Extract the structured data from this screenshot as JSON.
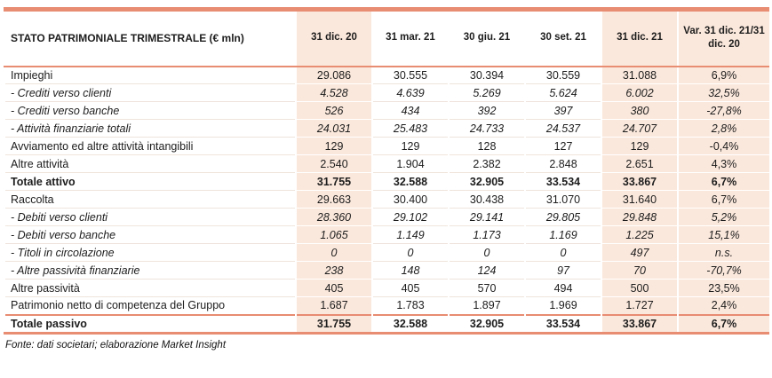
{
  "colors": {
    "accent": "#E88C72",
    "highlight": "#FBE8DC"
  },
  "table": {
    "title": "STATO PATRIMONIALE TRIMESTRALE (€ mln)",
    "columns": [
      "31 dic. 20",
      "31 mar. 21",
      "30 giu. 21",
      "30 set. 21",
      "31 dic. 21",
      "Var. 31 dic. 21/31 dic. 20"
    ],
    "rows": [
      {
        "label": "Impieghi",
        "em": false,
        "strong": false,
        "topline": false,
        "values": [
          "29.086",
          "30.555",
          "30.394",
          "30.559",
          "31.088",
          "6,9%"
        ]
      },
      {
        "label": "- Crediti verso clienti",
        "em": true,
        "strong": false,
        "topline": false,
        "values": [
          "4.528",
          "4.639",
          "5.269",
          "5.624",
          "6.002",
          "32,5%"
        ]
      },
      {
        "label": "- Crediti verso banche",
        "em": true,
        "strong": false,
        "topline": false,
        "values": [
          "526",
          "434",
          "392",
          "397",
          "380",
          "-27,8%"
        ]
      },
      {
        "label": "- Attività finanziarie totali",
        "em": true,
        "strong": false,
        "topline": false,
        "values": [
          "24.031",
          "25.483",
          "24.733",
          "24.537",
          "24.707",
          "2,8%"
        ]
      },
      {
        "label": "Avviamento ed altre attività intangibili",
        "em": false,
        "strong": false,
        "topline": false,
        "values": [
          "129",
          "129",
          "128",
          "127",
          "129",
          "-0,4%"
        ]
      },
      {
        "label": "Altre attività",
        "em": false,
        "strong": false,
        "topline": false,
        "values": [
          "2.540",
          "1.904",
          "2.382",
          "2.848",
          "2.651",
          "4,3%"
        ]
      },
      {
        "label": "Totale attivo",
        "em": false,
        "strong": true,
        "topline": false,
        "values": [
          "31.755",
          "32.588",
          "32.905",
          "33.534",
          "33.867",
          "6,7%"
        ]
      },
      {
        "label": "Raccolta",
        "em": false,
        "strong": false,
        "topline": false,
        "values": [
          "29.663",
          "30.400",
          "30.438",
          "31.070",
          "31.640",
          "6,7%"
        ]
      },
      {
        "label": "- Debiti verso clienti",
        "em": true,
        "strong": false,
        "topline": false,
        "values": [
          "28.360",
          "29.102",
          "29.141",
          "29.805",
          "29.848",
          "5,2%"
        ]
      },
      {
        "label": "- Debiti verso banche",
        "em": true,
        "strong": false,
        "topline": false,
        "values": [
          "1.065",
          "1.149",
          "1.173",
          "1.169",
          "1.225",
          "15,1%"
        ]
      },
      {
        "label": "- Titoli in circolazione",
        "em": true,
        "strong": false,
        "topline": false,
        "values": [
          "0",
          "0",
          "0",
          "0",
          "497",
          "n.s."
        ]
      },
      {
        "label": "- Altre passività finanziarie",
        "em": true,
        "strong": false,
        "topline": false,
        "values": [
          "238",
          "148",
          "124",
          "97",
          "70",
          "-70,7%"
        ]
      },
      {
        "label": "Altre passività",
        "em": false,
        "strong": false,
        "topline": false,
        "values": [
          "405",
          "405",
          "570",
          "494",
          "500",
          "23,5%"
        ]
      },
      {
        "label": "Patrimonio netto di competenza del Gruppo",
        "em": false,
        "strong": false,
        "topline": false,
        "values": [
          "1.687",
          "1.783",
          "1.897",
          "1.969",
          "1.727",
          "2,4%"
        ]
      },
      {
        "label": "Totale passivo",
        "em": false,
        "strong": true,
        "topline": true,
        "values": [
          "31.755",
          "32.588",
          "32.905",
          "33.534",
          "33.867",
          "6,7%"
        ]
      }
    ]
  },
  "footer": "Fonte: dati societari; elaborazione Market Insight"
}
